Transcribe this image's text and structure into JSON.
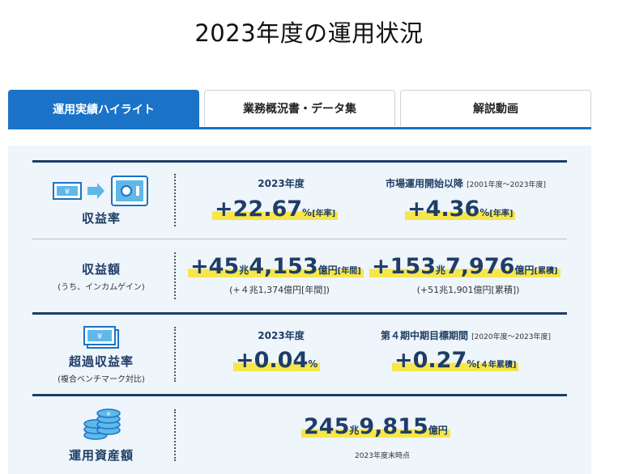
{
  "page": {
    "title": "2023年度の運用状況"
  },
  "tabs": [
    {
      "label": "運用実績ハイライト",
      "active": true
    },
    {
      "label": "業務概況書・データ集",
      "active": false
    },
    {
      "label": "解説動画",
      "active": false
    }
  ],
  "colors": {
    "accent": "#1a73c6",
    "navy": "#1f3d66",
    "highlight": "#f7e64a",
    "panel": "#eef5fb"
  },
  "rows": {
    "return_rate": {
      "label": "収益率",
      "icon": "money-to-safe-icon",
      "col1": {
        "title": "2023年度",
        "sign": "+",
        "value": "22.67",
        "unit": "%",
        "tag": "[年率]"
      },
      "col2": {
        "title": "市場運用開始以降",
        "note": "[2001年度〜2023年度]",
        "sign": "+",
        "value": "4.36",
        "unit": "%",
        "tag": "[年率]"
      }
    },
    "return_amount": {
      "label": "収益額",
      "sub": "(うち、インカムゲイン)",
      "col1": {
        "sign": "+",
        "v1": "45",
        "u1": "兆",
        "v2": "4,153",
        "u2": "億円",
        "tag": "[年間]",
        "sub": "(+４兆1,374億円[年間])"
      },
      "col2": {
        "sign": "+",
        "v1": "153",
        "u1": "兆",
        "v2": "7,976",
        "u2": "億円",
        "tag": "[累積]",
        "sub": "(+51兆1,901億円[累積])"
      }
    },
    "excess_return": {
      "label": "超過収益率",
      "sub": "(複合ベンチマーク対比)",
      "icon": "bill-stack-icon",
      "col1": {
        "title": "2023年度",
        "sign": "+",
        "value": "0.04",
        "unit": "%"
      },
      "col2": {
        "title": "第４期中期目標期間",
        "note": "[2020年度〜2023年度]",
        "sign": "+",
        "value": "0.27",
        "unit": "%",
        "tag": "[４年累積]"
      }
    },
    "assets": {
      "label": "運用資産額",
      "icon": "coin-stack-icon",
      "v1": "245",
      "u1": "兆",
      "v2": "9,815",
      "u2": "億円",
      "note": "2023年度末時点"
    }
  }
}
